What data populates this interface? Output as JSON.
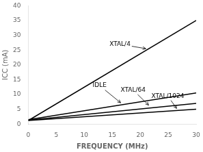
{
  "chart_data": {
    "type": "line",
    "xlabel": "FREQUENCY (MHz)",
    "ylabel": "ICC (mA)",
    "x": [
      0,
      30
    ],
    "series": [
      {
        "name": "XTAL/4",
        "color": "#000000",
        "values": [
          1.2,
          35.0
        ]
      },
      {
        "name": "IDLE",
        "color": "#000000",
        "values": [
          1.5,
          10.5
        ]
      },
      {
        "name": "XTAL/64",
        "color": "#000000",
        "values": [
          1.3,
          7.0
        ]
      },
      {
        "name": "XTAL/1024",
        "color": "#000000",
        "values": [
          1.2,
          5.0
        ]
      }
    ],
    "xlim": [
      0,
      30
    ],
    "ylim": [
      0,
      40
    ],
    "xticks": [
      0,
      5,
      10,
      15,
      20,
      25,
      30
    ],
    "yticks": [
      0,
      5,
      10,
      15,
      20,
      25,
      30,
      35,
      40
    ],
    "grid": false,
    "annotations": [
      {
        "text": "XTAL/4",
        "xy": [
          21.0,
          25.5
        ],
        "xytext": [
          14.5,
          27.0
        ]
      },
      {
        "text": "IDLE",
        "xy": [
          16.5,
          7.2
        ],
        "xytext": [
          11.5,
          13.0
        ]
      },
      {
        "text": "XTAL/64",
        "xy": [
          21.5,
          6.4
        ],
        "xytext": [
          16.5,
          11.5
        ]
      },
      {
        "text": "XTAL/1024",
        "xy": [
          26.5,
          5.3
        ],
        "xytext": [
          22.0,
          9.5
        ]
      }
    ]
  }
}
